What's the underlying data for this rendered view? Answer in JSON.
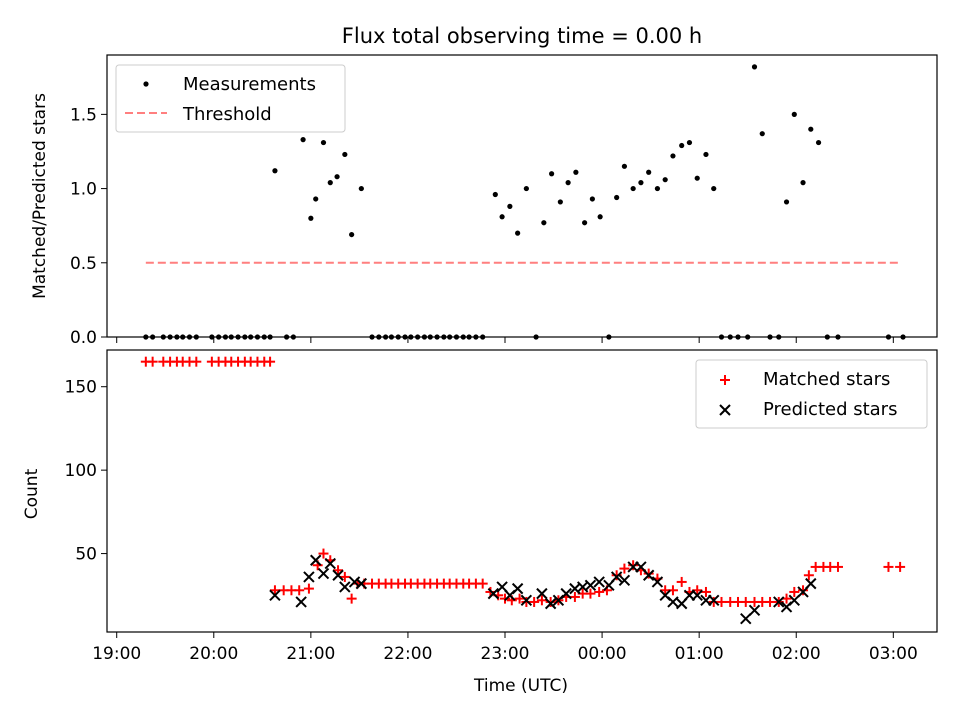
{
  "chart_data": [
    {
      "type": "scatter",
      "title": "Flux total observing time = 0.00 h",
      "xlabel": "",
      "ylabel": "Matched/Predicted stars",
      "xlim": [
        -0.1,
        8.45
      ],
      "ylim": [
        0,
        1.9
      ],
      "yticks": [
        0.0,
        0.5,
        1.0,
        1.5
      ],
      "ytick_labels": [
        "0.0",
        "0.5",
        "1.0",
        "1.5"
      ],
      "legend_position": "top-left",
      "series": [
        {
          "name": "Measurements",
          "kind": "scatter",
          "color": "#000000",
          "points": [
            [
              0.3,
              0
            ],
            [
              0.37,
              0
            ],
            [
              0.48,
              0
            ],
            [
              0.55,
              0
            ],
            [
              0.62,
              0
            ],
            [
              0.68,
              0
            ],
            [
              0.75,
              0
            ],
            [
              0.82,
              0
            ],
            [
              0.98,
              0
            ],
            [
              1.05,
              0
            ],
            [
              1.12,
              0
            ],
            [
              1.18,
              0
            ],
            [
              1.25,
              0
            ],
            [
              1.32,
              0
            ],
            [
              1.38,
              0
            ],
            [
              1.45,
              0
            ],
            [
              1.52,
              0
            ],
            [
              1.58,
              0
            ],
            [
              1.63,
              1.12
            ],
            [
              1.75,
              0
            ],
            [
              1.82,
              0
            ],
            [
              1.92,
              1.33
            ],
            [
              2.0,
              0.8
            ],
            [
              2.05,
              0.93
            ],
            [
              2.13,
              1.31
            ],
            [
              2.2,
              1.04
            ],
            [
              2.27,
              1.08
            ],
            [
              2.35,
              1.23
            ],
            [
              2.42,
              0.69
            ],
            [
              2.52,
              1.0
            ],
            [
              2.63,
              0
            ],
            [
              2.7,
              0
            ],
            [
              2.77,
              0
            ],
            [
              2.83,
              0
            ],
            [
              2.9,
              0
            ],
            [
              2.97,
              0
            ],
            [
              3.03,
              0
            ],
            [
              3.1,
              0
            ],
            [
              3.17,
              0
            ],
            [
              3.23,
              0
            ],
            [
              3.3,
              0
            ],
            [
              3.37,
              0
            ],
            [
              3.43,
              0
            ],
            [
              3.5,
              0
            ],
            [
              3.57,
              0
            ],
            [
              3.63,
              0
            ],
            [
              3.7,
              0
            ],
            [
              3.77,
              0
            ],
            [
              3.9,
              0.96
            ],
            [
              3.97,
              0.81
            ],
            [
              4.05,
              0.88
            ],
            [
              4.13,
              0.7
            ],
            [
              4.22,
              1.0
            ],
            [
              4.32,
              0
            ],
            [
              4.4,
              0.77
            ],
            [
              4.48,
              1.1
            ],
            [
              4.57,
              0.91
            ],
            [
              4.65,
              1.04
            ],
            [
              4.73,
              1.11
            ],
            [
              4.82,
              0.77
            ],
            [
              4.9,
              0.93
            ],
            [
              4.98,
              0.81
            ],
            [
              5.07,
              0
            ],
            [
              5.15,
              0.94
            ],
            [
              5.23,
              1.15
            ],
            [
              5.32,
              1.0
            ],
            [
              5.4,
              1.04
            ],
            [
              5.48,
              1.11
            ],
            [
              5.57,
              1.0
            ],
            [
              5.65,
              1.06
            ],
            [
              5.73,
              1.22
            ],
            [
              5.82,
              1.29
            ],
            [
              5.9,
              1.31
            ],
            [
              5.98,
              1.07
            ],
            [
              6.07,
              1.23
            ],
            [
              6.15,
              1.0
            ],
            [
              6.23,
              0
            ],
            [
              6.32,
              0
            ],
            [
              6.4,
              0
            ],
            [
              6.5,
              0
            ],
            [
              6.57,
              1.82
            ],
            [
              6.65,
              1.37
            ],
            [
              6.73,
              0
            ],
            [
              6.82,
              0
            ],
            [
              6.9,
              0.91
            ],
            [
              6.98,
              1.5
            ],
            [
              7.07,
              1.04
            ],
            [
              7.15,
              1.4
            ],
            [
              7.23,
              1.31
            ],
            [
              7.32,
              0
            ],
            [
              7.43,
              0
            ],
            [
              7.95,
              0
            ],
            [
              8.1,
              0
            ]
          ]
        },
        {
          "name": "Threshold",
          "kind": "line",
          "color": "#ff7f7f",
          "dash": true,
          "x": [
            0.3,
            8.07
          ],
          "y": [
            0.5,
            0.5
          ]
        }
      ]
    },
    {
      "type": "scatter",
      "title": "",
      "xlabel": "Time (UTC)",
      "ylabel": "Count",
      "xlim": [
        -0.1,
        8.45
      ],
      "ylim": [
        3,
        172
      ],
      "yticks": [
        50,
        100,
        150
      ],
      "ytick_labels": [
        "50",
        "100",
        "150"
      ],
      "xticks": [
        0,
        1,
        2,
        3,
        4,
        5,
        6,
        7,
        8
      ],
      "xtick_labels": [
        "19:00",
        "20:00",
        "21:00",
        "22:00",
        "23:00",
        "00:00",
        "01:00",
        "02:00",
        "03:00"
      ],
      "legend_position": "top-right",
      "series": [
        {
          "name": "Matched stars",
          "kind": "plus",
          "color": "#ff0000",
          "points": [
            [
              0.3,
              165
            ],
            [
              0.37,
              165
            ],
            [
              0.48,
              165
            ],
            [
              0.55,
              165
            ],
            [
              0.62,
              165
            ],
            [
              0.68,
              165
            ],
            [
              0.75,
              165
            ],
            [
              0.82,
              165
            ],
            [
              0.98,
              165
            ],
            [
              1.05,
              165
            ],
            [
              1.12,
              165
            ],
            [
              1.18,
              165
            ],
            [
              1.25,
              165
            ],
            [
              1.32,
              165
            ],
            [
              1.38,
              165
            ],
            [
              1.45,
              165
            ],
            [
              1.52,
              165
            ],
            [
              1.58,
              165
            ],
            [
              1.63,
              28
            ],
            [
              1.72,
              28
            ],
            [
              1.8,
              28
            ],
            [
              1.88,
              28
            ],
            [
              1.98,
              29
            ],
            [
              2.07,
              43
            ],
            [
              2.13,
              50
            ],
            [
              2.2,
              46
            ],
            [
              2.28,
              40
            ],
            [
              2.35,
              36
            ],
            [
              2.42,
              23
            ],
            [
              2.48,
              32
            ],
            [
              2.55,
              32
            ],
            [
              2.63,
              32
            ],
            [
              2.7,
              32
            ],
            [
              2.77,
              32
            ],
            [
              2.83,
              32
            ],
            [
              2.9,
              32
            ],
            [
              2.97,
              32
            ],
            [
              3.03,
              32
            ],
            [
              3.1,
              32
            ],
            [
              3.17,
              32
            ],
            [
              3.23,
              32
            ],
            [
              3.3,
              32
            ],
            [
              3.37,
              32
            ],
            [
              3.43,
              32
            ],
            [
              3.5,
              32
            ],
            [
              3.57,
              32
            ],
            [
              3.63,
              32
            ],
            [
              3.7,
              32
            ],
            [
              3.77,
              32
            ],
            [
              3.85,
              27
            ],
            [
              3.93,
              25
            ],
            [
              4.0,
              23
            ],
            [
              4.07,
              22
            ],
            [
              4.15,
              23
            ],
            [
              4.22,
              21
            ],
            [
              4.3,
              21
            ],
            [
              4.38,
              22
            ],
            [
              4.47,
              21
            ],
            [
              4.55,
              22
            ],
            [
              4.63,
              24
            ],
            [
              4.72,
              24
            ],
            [
              4.8,
              26
            ],
            [
              4.88,
              26
            ],
            [
              4.97,
              27
            ],
            [
              5.05,
              28
            ],
            [
              5.15,
              37
            ],
            [
              5.23,
              41
            ],
            [
              5.32,
              43
            ],
            [
              5.4,
              40
            ],
            [
              5.48,
              38
            ],
            [
              5.57,
              35
            ],
            [
              5.65,
              28
            ],
            [
              5.73,
              28
            ],
            [
              5.82,
              33
            ],
            [
              5.9,
              27
            ],
            [
              5.98,
              28
            ],
            [
              6.07,
              27
            ],
            [
              6.15,
              21
            ],
            [
              6.23,
              21
            ],
            [
              6.32,
              21
            ],
            [
              6.4,
              21
            ],
            [
              6.48,
              21
            ],
            [
              6.57,
              21
            ],
            [
              6.65,
              21
            ],
            [
              6.73,
              21
            ],
            [
              6.82,
              21
            ],
            [
              6.9,
              23
            ],
            [
              6.98,
              27
            ],
            [
              7.07,
              28
            ],
            [
              7.13,
              37
            ],
            [
              7.2,
              42
            ],
            [
              7.28,
              42
            ],
            [
              7.35,
              42
            ],
            [
              7.43,
              42
            ],
            [
              7.95,
              42
            ],
            [
              8.07,
              42
            ]
          ]
        },
        {
          "name": "Predicted stars",
          "kind": "cross",
          "color": "#000000",
          "points": [
            [
              1.63,
              25
            ],
            [
              1.9,
              21
            ],
            [
              1.98,
              36
            ],
            [
              2.05,
              46
            ],
            [
              2.13,
              38
            ],
            [
              2.2,
              44
            ],
            [
              2.28,
              37
            ],
            [
              2.35,
              30
            ],
            [
              2.45,
              33
            ],
            [
              2.52,
              32
            ],
            [
              3.88,
              26
            ],
            [
              3.97,
              30
            ],
            [
              4.05,
              25
            ],
            [
              4.13,
              29
            ],
            [
              4.22,
              22
            ],
            [
              4.38,
              26
            ],
            [
              4.47,
              20
            ],
            [
              4.55,
              22
            ],
            [
              4.63,
              26
            ],
            [
              4.72,
              29
            ],
            [
              4.8,
              30
            ],
            [
              4.88,
              31
            ],
            [
              4.97,
              33
            ],
            [
              5.07,
              31
            ],
            [
              5.15,
              36
            ],
            [
              5.23,
              34
            ],
            [
              5.32,
              42
            ],
            [
              5.4,
              42
            ],
            [
              5.48,
              37
            ],
            [
              5.57,
              33
            ],
            [
              5.65,
              25
            ],
            [
              5.73,
              21
            ],
            [
              5.82,
              20
            ],
            [
              5.9,
              25
            ],
            [
              5.98,
              25
            ],
            [
              6.07,
              22
            ],
            [
              6.15,
              22
            ],
            [
              6.48,
              11
            ],
            [
              6.57,
              16
            ],
            [
              6.82,
              21
            ],
            [
              6.9,
              18
            ],
            [
              6.98,
              22
            ],
            [
              7.07,
              27
            ],
            [
              7.15,
              32
            ]
          ]
        }
      ]
    }
  ]
}
